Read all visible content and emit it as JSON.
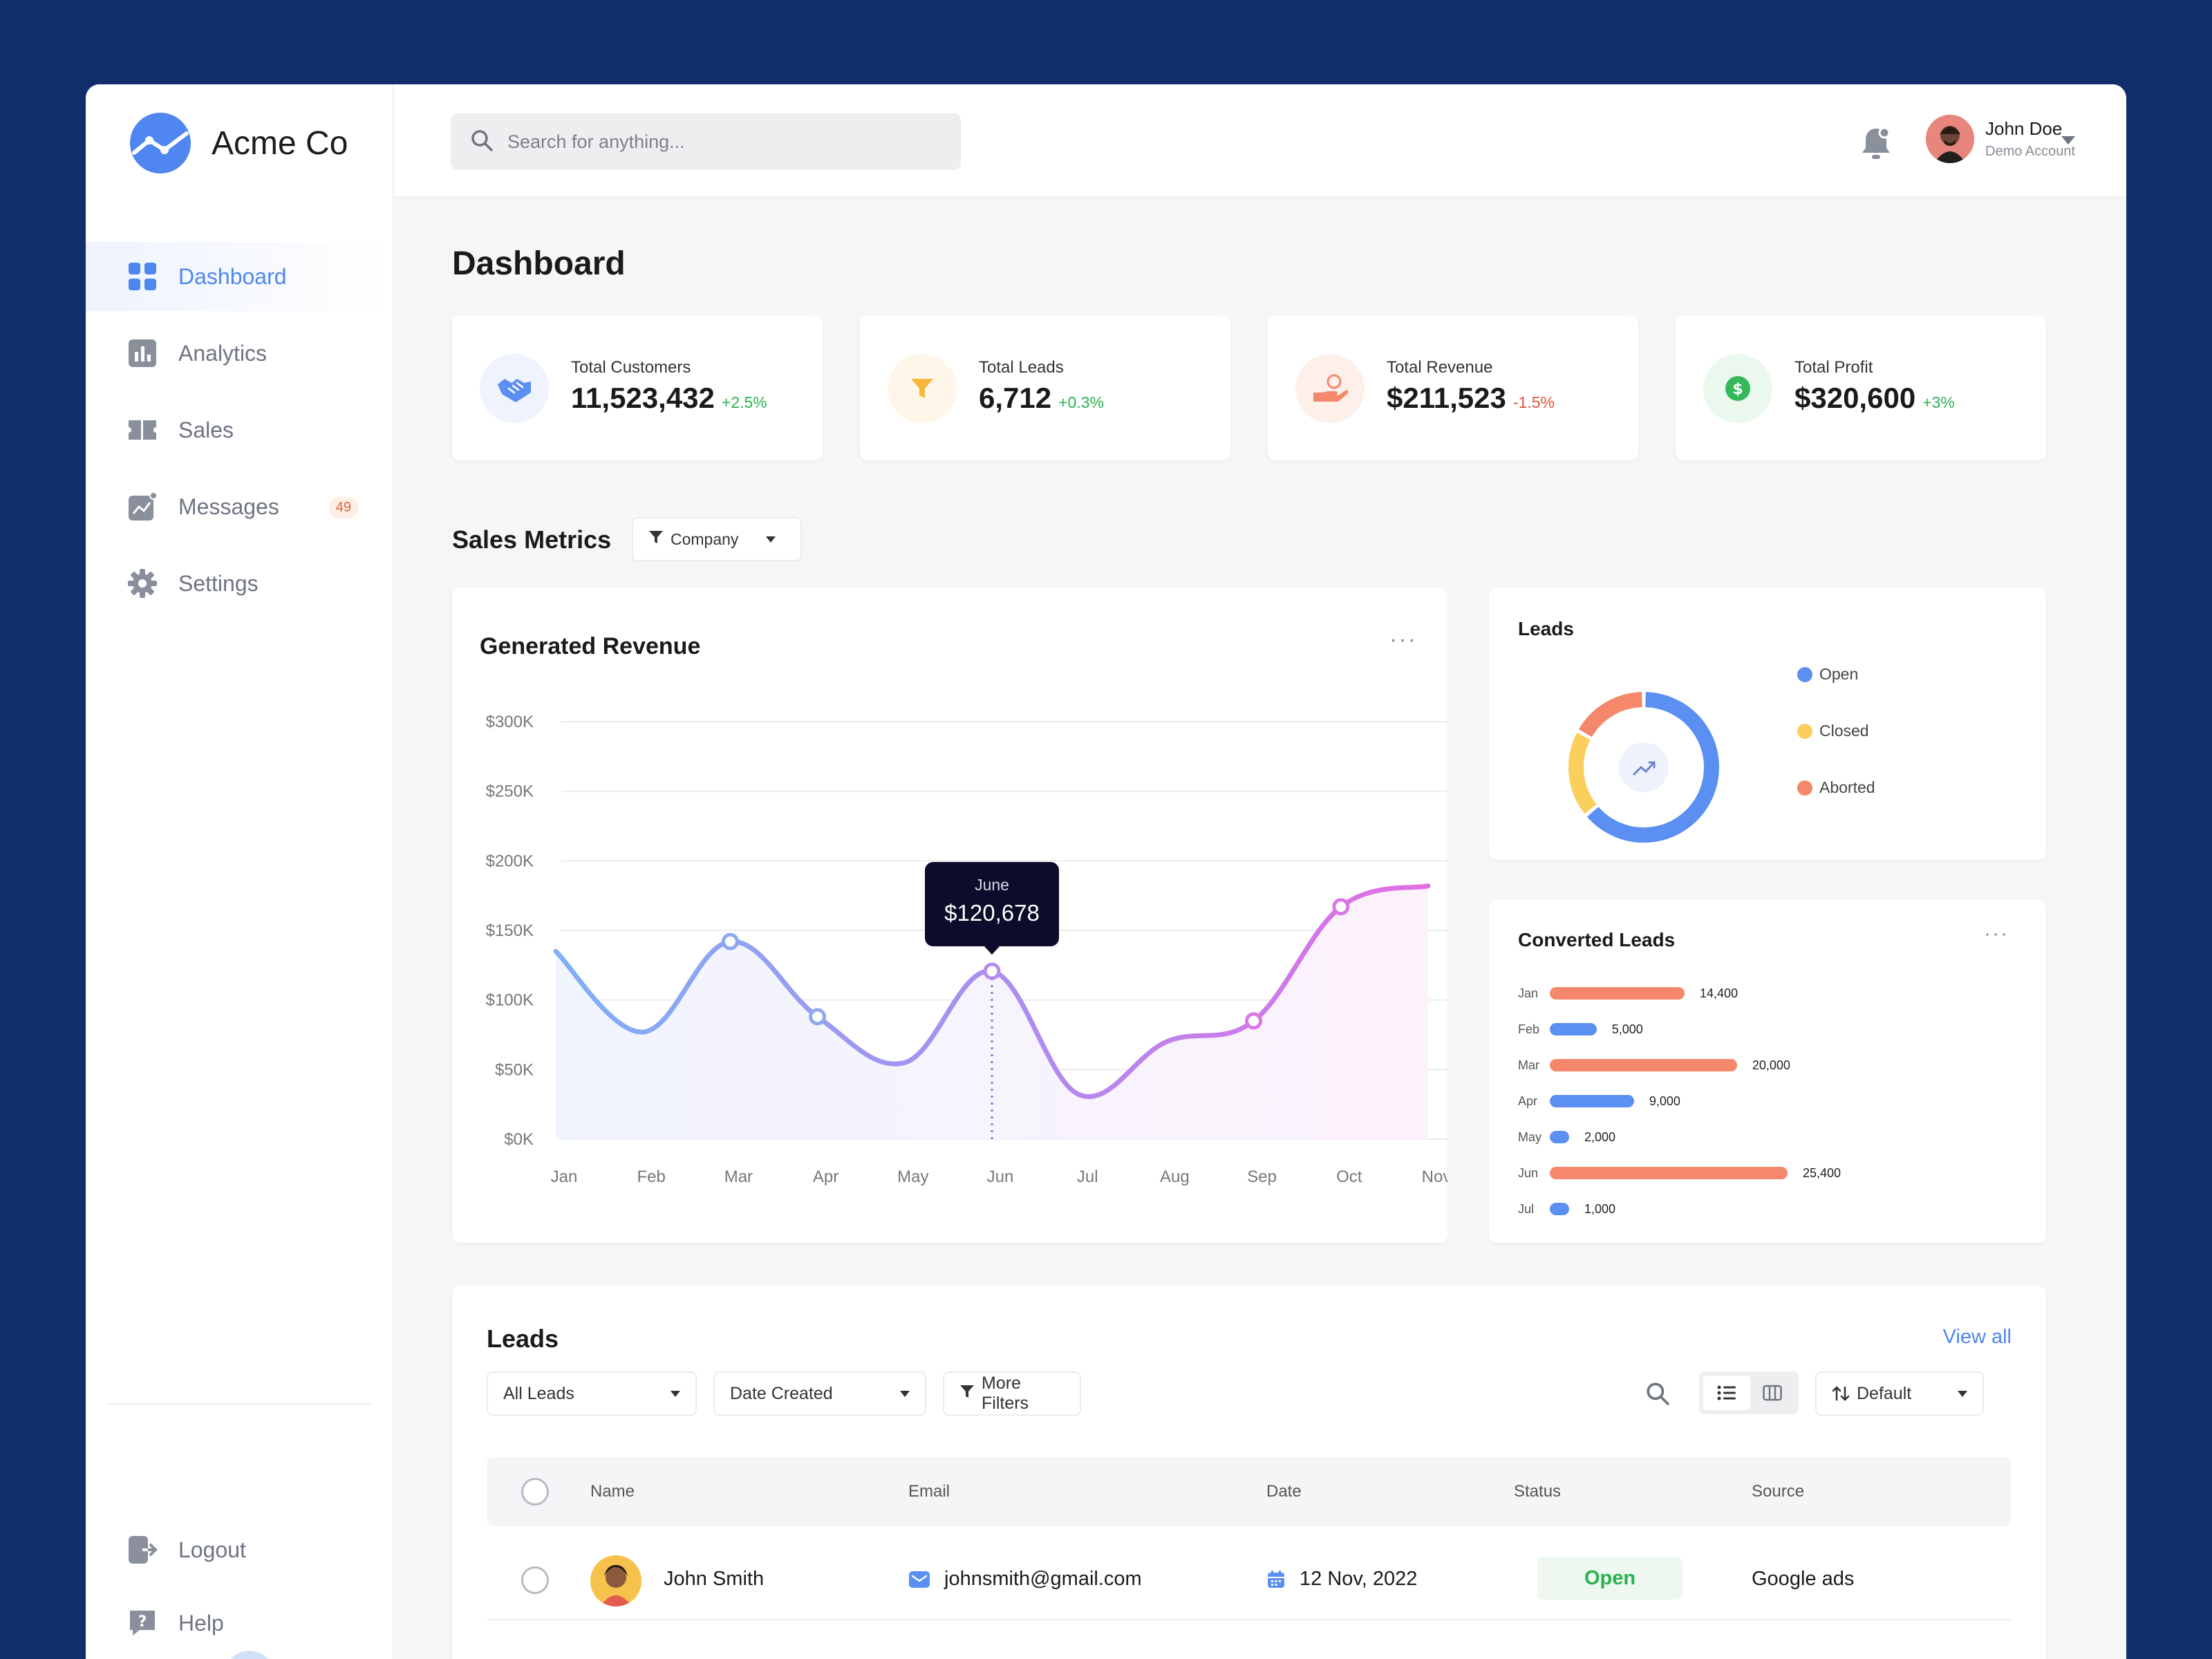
{
  "brand": {
    "name": "Acme Co"
  },
  "sidebar": {
    "items": [
      {
        "label": "Dashboard"
      },
      {
        "label": "Analytics"
      },
      {
        "label": "Sales"
      },
      {
        "label": "Messages",
        "badge": "49"
      },
      {
        "label": "Settings"
      }
    ],
    "bottom": [
      {
        "label": "Logout"
      },
      {
        "label": "Help"
      }
    ]
  },
  "header": {
    "search_placeholder": "Search for anything...",
    "user_name": "John Doe",
    "user_subtitle": "Demo Account"
  },
  "page": {
    "title": "Dashboard"
  },
  "kpis": [
    {
      "label": "Total Customers",
      "value": "11,523,432",
      "delta": "+2.5%",
      "trend": "up"
    },
    {
      "label": "Total Leads",
      "value": "6,712",
      "delta": "+0.3%",
      "trend": "up"
    },
    {
      "label": "Total Revenue",
      "value": "$211,523",
      "delta": "-1.5%",
      "trend": "down"
    },
    {
      "label": "Total Profit",
      "value": "$320,600",
      "delta": "+3%",
      "trend": "up"
    }
  ],
  "sales_metrics": {
    "title": "Sales Metrics",
    "filter_label": "Company"
  },
  "revenue_chart": {
    "title": "Generated Revenue",
    "menu": "···",
    "tooltip_month": "June",
    "tooltip_value": "$120,678"
  },
  "leads_donut": {
    "title": "Leads",
    "legend": [
      "Open",
      "Closed",
      "Aborted"
    ]
  },
  "converted_leads": {
    "title": "Converted Leads",
    "menu": "···"
  },
  "chart_data": [
    {
      "type": "line",
      "title": "Generated Revenue",
      "x": [
        "Jan",
        "Feb",
        "Mar",
        "Apr",
        "May",
        "Jun",
        "Jul",
        "Aug",
        "Sep",
        "Oct",
        "Nov"
      ],
      "y_ticks": [
        "$0K",
        "$50K",
        "$100K",
        "$150K",
        "$200K",
        "$250K",
        "$300K"
      ],
      "ylim": [
        0,
        300000
      ],
      "series": [
        {
          "values": [
            135000,
            77000,
            142000,
            88000,
            55000,
            120678,
            32000,
            70000,
            85000,
            167000,
            182000
          ]
        }
      ],
      "highlight": {
        "x": "Jun",
        "value": 120678
      },
      "grid": true
    },
    {
      "type": "pie",
      "title": "Leads",
      "categories": [
        "Open",
        "Closed",
        "Aborted"
      ],
      "values": [
        64,
        19,
        17
      ],
      "colors": [
        "#5b8ff2",
        "#fbcf5b",
        "#f5876a"
      ]
    },
    {
      "type": "bar",
      "orientation": "horizontal",
      "title": "Converted Leads",
      "categories": [
        "Jan",
        "Feb",
        "Mar",
        "Apr",
        "May",
        "Jun",
        "Jul"
      ],
      "values": [
        14400,
        5000,
        20000,
        9000,
        2000,
        25400,
        1000
      ],
      "labels": [
        "14,400",
        "5,000",
        "20,000",
        "9,000",
        "2,000",
        "25,400",
        "1,000"
      ],
      "colors": [
        "#f5876a",
        "#5b8ff2",
        "#f5876a",
        "#5b8ff2",
        "#5b8ff2",
        "#f5876a",
        "#5b8ff2"
      ]
    }
  ],
  "leads_table": {
    "title": "Leads",
    "view_all": "View all",
    "filters": {
      "all_leads": "All Leads",
      "date_created": "Date Created",
      "more_filters": "More Filters",
      "sort": "Default"
    },
    "columns": [
      "Name",
      "Email",
      "Date",
      "Status",
      "Source"
    ],
    "rows": [
      {
        "name": "John Smith",
        "email": "johnsmith@gmail.com",
        "date": "12 Nov, 2022",
        "status": "Open",
        "source": "Google ads"
      }
    ]
  },
  "colors": {
    "accent": "#4f86f0",
    "background": "#112d6b",
    "positive": "#2bb14f",
    "negative": "#e2523a"
  }
}
